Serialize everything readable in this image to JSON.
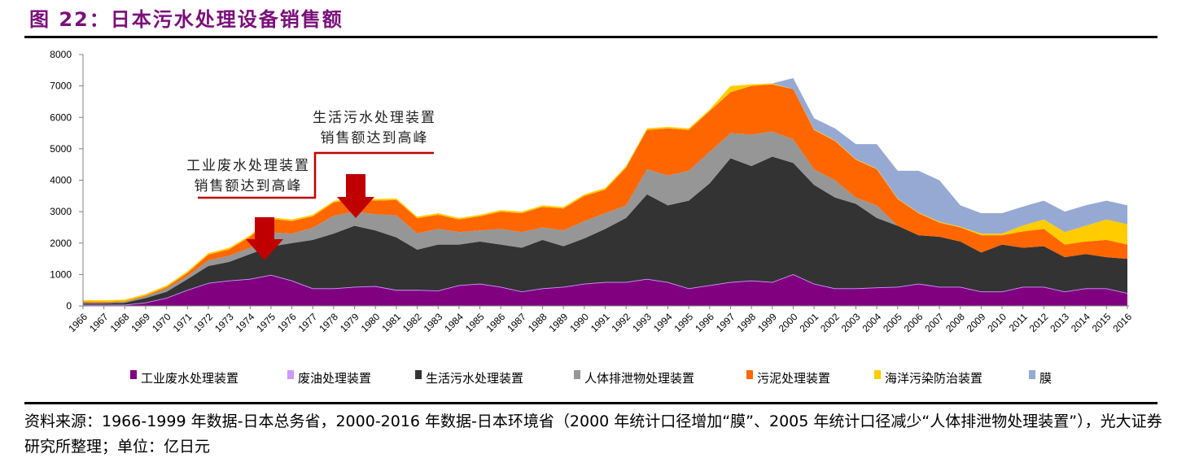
{
  "title": "图 22：日本污水处理设备销售额",
  "footer": "资料来源：1966-1999 年数据-日本总务省，2000-2016 年数据-日本环境省（2000 年统计口径增加“膜”、2005 年统计口径减少“人体排泄物处理装置”），光大证券研究所整理；单位：亿日元",
  "chart_data": {
    "type": "area",
    "stacked": true,
    "title": "",
    "xlabel": "",
    "ylabel": "",
    "ylim": [
      0,
      8000
    ],
    "yticks": [
      0,
      1000,
      2000,
      3000,
      4000,
      5000,
      6000,
      7000,
      8000
    ],
    "grid": false,
    "legend_position": "bottom",
    "categories": [
      "1966",
      "1967",
      "1968",
      "1969",
      "1970",
      "1971",
      "1972",
      "1973",
      "1974",
      "1975",
      "1976",
      "1977",
      "1978",
      "1979",
      "1980",
      "1981",
      "1982",
      "1983",
      "1984",
      "1985",
      "1986",
      "1987",
      "1988",
      "1989",
      "1990",
      "1991",
      "1992",
      "1993",
      "1994",
      "1995",
      "1996",
      "1997",
      "1998",
      "1999",
      "2000",
      "2001",
      "2002",
      "2003",
      "2004",
      "2005",
      "2006",
      "2007",
      "2008",
      "2009",
      "2010",
      "2011",
      "2012",
      "2013",
      "2014",
      "2015",
      "2016"
    ],
    "series": [
      {
        "name": "工业废水处理装置",
        "color": "#800080",
        "values": [
          30,
          30,
          30,
          100,
          250,
          500,
          720,
          800,
          850,
          980,
          800,
          550,
          550,
          600,
          620,
          500,
          500,
          480,
          650,
          700,
          600,
          450,
          550,
          600,
          700,
          750,
          750,
          850,
          750,
          550,
          650,
          750,
          800,
          750,
          1000,
          700,
          550,
          550,
          580,
          600,
          700,
          600,
          600,
          450,
          450,
          600,
          600,
          450,
          550,
          550,
          400
        ]
      },
      {
        "name": "废油处理装置",
        "color": "#cc99ff",
        "values": [
          10,
          10,
          10,
          10,
          10,
          10,
          10,
          10,
          10,
          10,
          10,
          10,
          10,
          10,
          10,
          10,
          10,
          10,
          10,
          10,
          10,
          10,
          10,
          10,
          10,
          10,
          10,
          10,
          10,
          10,
          10,
          10,
          10,
          10,
          10,
          10,
          10,
          10,
          10,
          10,
          10,
          10,
          10,
          10,
          10,
          10,
          10,
          10,
          10,
          10,
          10
        ]
      },
      {
        "name": "生活污水处理装置",
        "color": "#333333",
        "values": [
          40,
          40,
          60,
          140,
          190,
          340,
          540,
          590,
          790,
          900,
          1190,
          1540,
          1740,
          1940,
          1770,
          1670,
          1280,
          1460,
          1290,
          1340,
          1340,
          1390,
          1540,
          1290,
          1440,
          1690,
          2040,
          2690,
          2440,
          2790,
          3240,
          3940,
          3640,
          3990,
          3540,
          3140,
          2890,
          2690,
          2210,
          1940,
          1540,
          1590,
          1440,
          1240,
          1490,
          1240,
          1290,
          1090,
          1090,
          990,
          1090
        ]
      },
      {
        "name": "人体排泄物处理装置",
        "color": "#969696",
        "values": [
          20,
          20,
          30,
          50,
          100,
          100,
          180,
          200,
          200,
          450,
          300,
          390,
          570,
          450,
          520,
          700,
          520,
          500,
          400,
          350,
          500,
          500,
          400,
          500,
          550,
          500,
          400,
          800,
          950,
          950,
          1000,
          800,
          1000,
          800,
          750,
          500,
          550,
          200,
          400,
          0,
          0,
          0,
          0,
          0,
          0,
          0,
          0,
          0,
          0,
          0,
          0
        ]
      },
      {
        "name": "污泥处理装置",
        "color": "#ff6600",
        "values": [
          30,
          30,
          20,
          30,
          50,
          100,
          180,
          200,
          350,
          430,
          400,
          360,
          420,
          400,
          430,
          490,
          480,
          450,
          400,
          450,
          550,
          600,
          650,
          700,
          800,
          750,
          1200,
          1250,
          1500,
          1300,
          1300,
          1300,
          1550,
          1500,
          1600,
          1250,
          1250,
          1200,
          1150,
          850,
          700,
          450,
          450,
          550,
          300,
          520,
          550,
          400,
          400,
          550,
          450
        ]
      },
      {
        "name": "海洋污染防治装置",
        "color": "#ffcc00",
        "values": [
          50,
          50,
          50,
          50,
          50,
          50,
          50,
          50,
          50,
          50,
          50,
          50,
          50,
          50,
          50,
          50,
          50,
          50,
          50,
          50,
          50,
          50,
          50,
          50,
          50,
          50,
          50,
          50,
          50,
          50,
          50,
          200,
          50,
          30,
          0,
          20,
          20,
          20,
          20,
          20,
          20,
          30,
          20,
          50,
          50,
          190,
          300,
          400,
          500,
          650,
          650
        ]
      },
      {
        "name": "膜",
        "color": "#95a9d3",
        "values": [
          0,
          0,
          0,
          0,
          0,
          0,
          0,
          0,
          0,
          0,
          0,
          0,
          0,
          0,
          0,
          0,
          0,
          0,
          0,
          0,
          0,
          0,
          0,
          0,
          0,
          0,
          0,
          0,
          0,
          0,
          0,
          0,
          0,
          0,
          350,
          350,
          380,
          480,
          780,
          880,
          1330,
          1320,
          680,
          650,
          650,
          600,
          600,
          650,
          650,
          600,
          600
        ]
      }
    ],
    "annotations": [
      {
        "lines": [
          "工业废水处理装置",
          "销售额达到高峰"
        ],
        "points_to": "1975"
      },
      {
        "lines": [
          "生活污水处理装置",
          "销售额达到高峰"
        ],
        "points_to": "1979"
      }
    ],
    "annotation_color": "#c00000"
  }
}
